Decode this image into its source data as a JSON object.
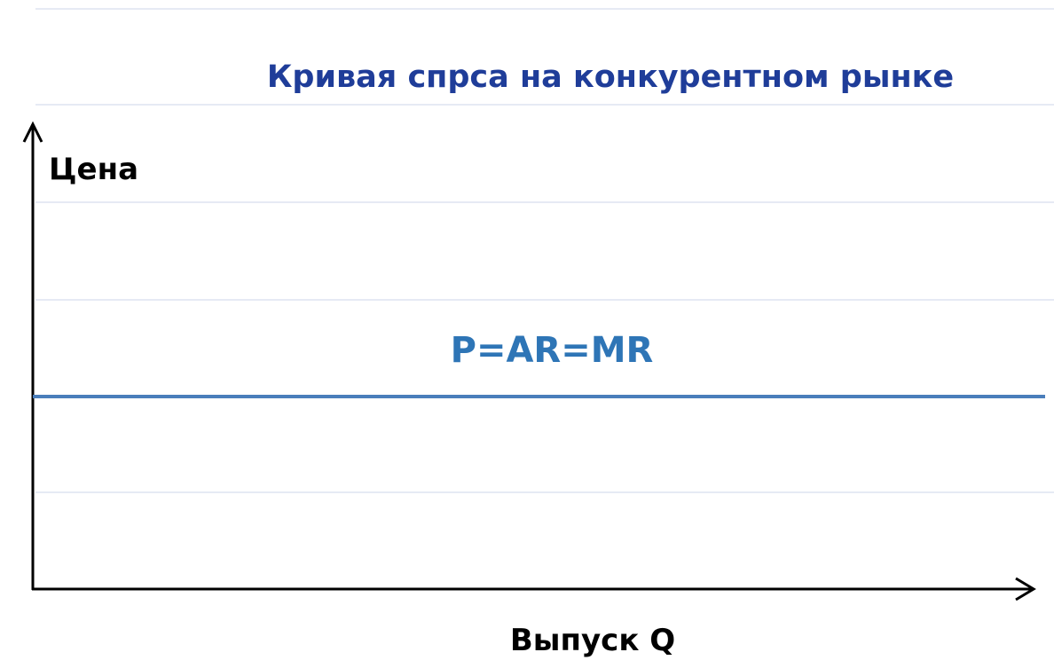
{
  "title": "Кривая спрса на конкурентном  рынке",
  "axes": {
    "y_label": "Цена",
    "x_label": "Выпуск Q"
  },
  "curve": {
    "label": "P=AR=MR"
  }
}
